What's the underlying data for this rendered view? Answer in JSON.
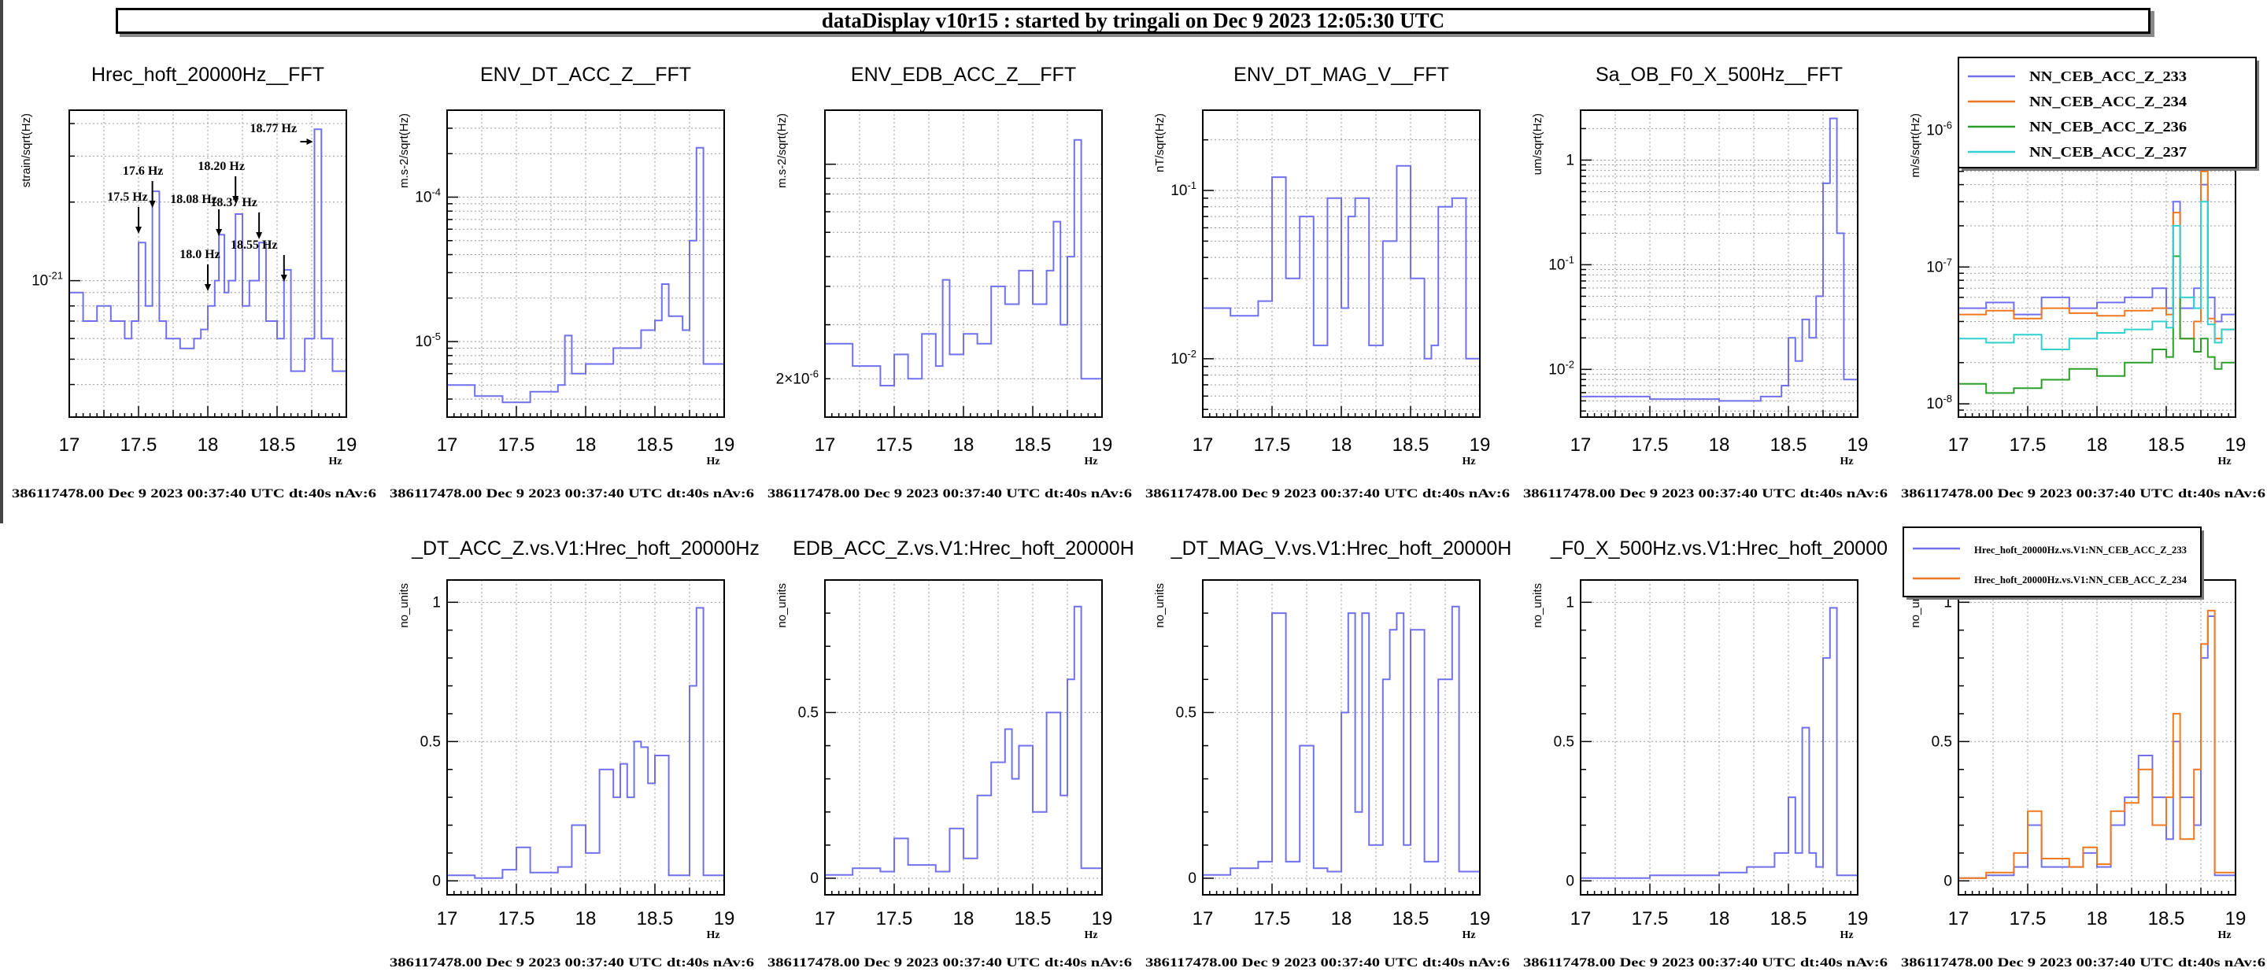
{
  "header": {
    "title": "dataDisplay v10r15 : started by tringali on Dec  9 2023 12:05:30 UTC"
  },
  "colors": {
    "blue": "#7070ee",
    "orange": "#f07820",
    "green": "#2aa02a",
    "cyan": "#30d0d0"
  },
  "chart_data": [
    {
      "type": "line",
      "title": "Hrec_hoft_20000Hz__FFT",
      "ylabel": "strain/sqrt(Hz)",
      "xlabel": "Hz",
      "xlim": [
        17,
        19
      ],
      "ylog": true,
      "ylim": [
        3e-22,
        4.5e-21
      ],
      "ytick_labels": [
        {
          "v": 1e-21,
          "label": "10-21"
        }
      ],
      "xtick_labels": [
        "17",
        "17.5",
        "18",
        "18.5",
        "19"
      ],
      "footer": "386117478.00 Dec 9 2023 00:37:40 UTC dt:40s nAv:6",
      "annotations": [
        {
          "label": "17.5 Hz",
          "x": 17.5
        },
        {
          "label": "17.6 Hz",
          "x": 17.6
        },
        {
          "label": "18.08 Hz",
          "x": 18.08
        },
        {
          "label": "18.0 Hz",
          "x": 18.0
        },
        {
          "label": "18.20 Hz",
          "x": 18.2
        },
        {
          "label": "18.37 Hz",
          "x": 18.37
        },
        {
          "label": "18.55 Hz",
          "x": 18.55
        },
        {
          "label": "18.77 Hz",
          "x": 18.77
        }
      ],
      "x": [
        17,
        17.1,
        17.2,
        17.3,
        17.4,
        17.45,
        17.5,
        17.55,
        17.6,
        17.65,
        17.7,
        17.8,
        17.9,
        17.95,
        18,
        18.05,
        18.08,
        18.12,
        18.15,
        18.2,
        18.25,
        18.3,
        18.37,
        18.42,
        18.5,
        18.55,
        18.6,
        18.7,
        18.77,
        18.82,
        18.9,
        19
      ],
      "series": [
        {
          "values": [
            9e-22,
            7e-22,
            8e-22,
            7e-22,
            6e-22,
            7e-22,
            1.4e-21,
            8e-22,
            2.2e-21,
            7e-22,
            6e-22,
            5.5e-22,
            6e-22,
            6.5e-22,
            8e-22,
            1e-21,
            1.5e-21,
            9e-22,
            1e-21,
            1.8e-21,
            8e-22,
            1e-21,
            1.4e-21,
            7e-22,
            6e-22,
            1.1e-21,
            4.5e-22,
            6e-22,
            3.8e-21,
            6e-22,
            4.5e-22,
            4.8e-22
          ],
          "color": "#7070ee"
        }
      ]
    },
    {
      "type": "line",
      "title": "ENV_DT_ACC_Z__FFT",
      "ylabel": "m.s-2/sqrt(Hz)",
      "xlabel": "Hz",
      "xlim": [
        17,
        19
      ],
      "ylog": true,
      "ylim": [
        3e-06,
        0.0004
      ],
      "ytick_labels": [
        {
          "v": 0.0001,
          "label": "10-4"
        },
        {
          "v": 1e-05,
          "label": "10-5"
        }
      ],
      "xtick_labels": [
        "17",
        "17.5",
        "18",
        "18.5",
        "19"
      ],
      "footer": "386117478.00 Dec 9 2023 00:37:40 UTC dt:40s nAv:6",
      "x": [
        17,
        17.2,
        17.4,
        17.6,
        17.8,
        17.85,
        17.9,
        18,
        18.2,
        18.4,
        18.5,
        18.55,
        18.6,
        18.7,
        18.75,
        18.8,
        18.85,
        19
      ],
      "series": [
        {
          "values": [
            5e-06,
            4.2e-06,
            3.8e-06,
            4.5e-06,
            5e-06,
            1.1e-05,
            6e-06,
            7e-06,
            9e-06,
            1.2e-05,
            1.4e-05,
            2.5e-05,
            1.5e-05,
            1.2e-05,
            5e-05,
            0.00022,
            7e-06,
            6e-06
          ],
          "color": "#7070ee"
        }
      ]
    },
    {
      "type": "line",
      "title": "ENV_EDB_ACC_Z__FFT",
      "ylabel": "m.s-2/sqrt(Hz)",
      "xlabel": "Hz",
      "xlim": [
        17,
        19
      ],
      "ylog": true,
      "ylim": [
        1.5e-06,
        1.5e-05
      ],
      "ytick_labels": [
        {
          "v": 2e-06,
          "label": "2×10-6"
        }
      ],
      "xtick_labels": [
        "17",
        "17.5",
        "18",
        "18.5",
        "19"
      ],
      "footer": "386117478.00 Dec 9 2023 00:37:40 UTC dt:40s nAv:6",
      "x": [
        17,
        17.2,
        17.4,
        17.5,
        17.6,
        17.7,
        17.8,
        17.85,
        17.9,
        18,
        18.1,
        18.2,
        18.3,
        18.4,
        18.5,
        18.6,
        18.65,
        18.7,
        18.75,
        18.8,
        18.85,
        19
      ],
      "series": [
        {
          "values": [
            2.6e-06,
            2.2e-06,
            1.9e-06,
            2.4e-06,
            2e-06,
            2.8e-06,
            2.2e-06,
            4.2e-06,
            2.4e-06,
            2.8e-06,
            2.6e-06,
            4e-06,
            3.5e-06,
            4.5e-06,
            3.5e-06,
            4.5e-06,
            6.5e-06,
            3e-06,
            5e-06,
            1.2e-05,
            2e-06,
            2.4e-06
          ],
          "color": "#7070ee"
        }
      ]
    },
    {
      "type": "line",
      "title": "ENV_DT_MAG_V__FFT",
      "ylabel": "nT/sqrt(Hz)",
      "xlabel": "Hz",
      "xlim": [
        17,
        19
      ],
      "ylog": true,
      "ylim": [
        0.0045,
        0.3
      ],
      "ytick_labels": [
        {
          "v": 0.1,
          "label": "10-1"
        },
        {
          "v": 0.01,
          "label": "10-2"
        }
      ],
      "xtick_labels": [
        "17",
        "17.5",
        "18",
        "18.5",
        "19"
      ],
      "footer": "386117478.00 Dec 9 2023 00:37:40 UTC dt:40s nAv:6",
      "x": [
        17,
        17.2,
        17.4,
        17.5,
        17.6,
        17.7,
        17.8,
        17.9,
        18,
        18.05,
        18.1,
        18.2,
        18.3,
        18.4,
        18.5,
        18.6,
        18.65,
        18.7,
        18.8,
        18.9,
        19
      ],
      "series": [
        {
          "values": [
            0.02,
            0.018,
            0.022,
            0.12,
            0.03,
            0.07,
            0.012,
            0.09,
            0.02,
            0.07,
            0.09,
            0.012,
            0.05,
            0.14,
            0.03,
            0.01,
            0.012,
            0.08,
            0.09,
            0.01,
            0.012
          ],
          "color": "#7070ee"
        }
      ]
    },
    {
      "type": "line",
      "title": "Sa_OB_F0_X_500Hz__FFT",
      "ylabel": "um/sqrt(Hz)",
      "xlabel": "Hz",
      "xlim": [
        17,
        19
      ],
      "ylog": true,
      "ylim": [
        0.0035,
        3.0
      ],
      "ytick_labels": [
        {
          "v": 1,
          "label": "1"
        },
        {
          "v": 0.1,
          "label": "10-1"
        },
        {
          "v": 0.01,
          "label": "10-2"
        }
      ],
      "xtick_labels": [
        "17",
        "17.5",
        "18",
        "18.5",
        "19"
      ],
      "footer": "386117478.00 Dec 9 2023 00:37:40 UTC dt:40s nAv:6",
      "x": [
        17,
        17.5,
        18,
        18.3,
        18.45,
        18.5,
        18.55,
        18.6,
        18.65,
        18.7,
        18.75,
        18.8,
        18.85,
        18.9,
        19
      ],
      "series": [
        {
          "values": [
            0.0055,
            0.0052,
            0.005,
            0.0055,
            0.007,
            0.02,
            0.012,
            0.03,
            0.02,
            0.05,
            0.6,
            2.5,
            0.2,
            0.008,
            0.01
          ],
          "color": "#7070ee"
        }
      ]
    },
    {
      "type": "line",
      "title": "",
      "ylabel": "m/s/sqrt(Hz)",
      "xlabel": "Hz",
      "xlim": [
        17,
        19
      ],
      "ylog": true,
      "ylim": [
        8e-09,
        1.4e-06
      ],
      "ytick_labels": [
        {
          "v": 1e-06,
          "label": "10-6"
        },
        {
          "v": 1e-07,
          "label": "10-7"
        },
        {
          "v": 1e-08,
          "label": "10-8"
        }
      ],
      "xtick_labels": [
        "17",
        "17.5",
        "18",
        "18.5",
        "19"
      ],
      "footer": "386117478.00 Dec 9 2023 00:37:40 UTC dt:40s nAv:6",
      "legend": "top-right",
      "x": [
        17,
        17.2,
        17.4,
        17.6,
        17.8,
        18,
        18.2,
        18.4,
        18.5,
        18.55,
        18.6,
        18.7,
        18.75,
        18.8,
        18.85,
        18.9,
        19
      ],
      "series": [
        {
          "name": "NN_CEB_ACC_Z_233",
          "values": [
            5e-08,
            5.5e-08,
            4.5e-08,
            6e-08,
            5e-08,
            5.5e-08,
            6e-08,
            7e-08,
            5e-08,
            3e-07,
            5e-08,
            7e-08,
            4e-07,
            6e-08,
            4e-08,
            4.5e-08,
            4.2e-08
          ],
          "color": "#7070ee"
        },
        {
          "name": "NN_CEB_ACC_Z_234",
          "values": [
            4.5e-08,
            4.8e-08,
            4.2e-08,
            5e-08,
            4.6e-08,
            4.4e-08,
            4.8e-08,
            5e-08,
            4.5e-08,
            2.5e-07,
            3e-08,
            4e-08,
            5e-07,
            4.2e-08,
            3e-08,
            3.5e-08,
            3.2e-08
          ],
          "color": "#f07820"
        },
        {
          "name": "NN_CEB_ACC_Z_236",
          "values": [
            1.4e-08,
            1.2e-08,
            1.3e-08,
            1.5e-08,
            1.8e-08,
            1.6e-08,
            2e-08,
            2.5e-08,
            2.2e-08,
            1.2e-07,
            3e-08,
            2.4e-08,
            3e-08,
            2.2e-08,
            1.8e-08,
            2e-08,
            1.9e-08
          ],
          "color": "#2aa02a"
        },
        {
          "name": "NN_CEB_ACC_Z_237",
          "values": [
            3e-08,
            2.8e-08,
            3.2e-08,
            2.5e-08,
            3e-08,
            3.3e-08,
            3.5e-08,
            4e-08,
            3.6e-08,
            2e-07,
            6e-08,
            5e-08,
            3e-07,
            3.8e-08,
            2.8e-08,
            3.5e-08,
            3.3e-08
          ],
          "color": "#30d0d0"
        }
      ]
    },
    {
      "type": "line",
      "title": "_DT_ACC_Z.vs.V1:Hrec_hoft_20000Hz",
      "ylabel": "no_units",
      "xlabel": "Hz",
      "xlim": [
        17,
        19
      ],
      "ylim": [
        -0.05,
        1.08
      ],
      "ytick_labels": [
        {
          "v": 1,
          "label": "1"
        },
        {
          "v": 0.5,
          "label": "0.5"
        },
        {
          "v": 0,
          "label": "0"
        }
      ],
      "xtick_labels": [
        "17",
        "17.5",
        "18",
        "18.5",
        "19"
      ],
      "footer": "386117478.00 Dec 9 2023 00:37:40 UTC dt:40s nAv:6",
      "x": [
        17,
        17.2,
        17.4,
        17.5,
        17.6,
        17.8,
        17.9,
        18,
        18.1,
        18.2,
        18.25,
        18.3,
        18.35,
        18.4,
        18.45,
        18.5,
        18.6,
        18.7,
        18.75,
        18.8,
        18.85,
        19
      ],
      "series": [
        {
          "values": [
            0.02,
            0.01,
            0.04,
            0.12,
            0.03,
            0.05,
            0.2,
            0.1,
            0.4,
            0.3,
            0.42,
            0.3,
            0.5,
            0.48,
            0.35,
            0.45,
            0.02,
            0.02,
            0.7,
            0.98,
            0.02,
            0.02
          ],
          "color": "#7070ee"
        }
      ]
    },
    {
      "type": "line",
      "title": "EDB_ACC_Z.vs.V1:Hrec_hoft_20000H",
      "ylabel": "no_units",
      "xlabel": "Hz",
      "xlim": [
        17,
        19
      ],
      "ylim": [
        -0.05,
        0.9
      ],
      "ytick_labels": [
        {
          "v": 0.5,
          "label": "0.5"
        },
        {
          "v": 0,
          "label": "0"
        }
      ],
      "xtick_labels": [
        "17",
        "17.5",
        "18",
        "18.5",
        "19"
      ],
      "footer": "386117478.00 Dec 9 2023 00:37:40 UTC dt:40s nAv:6",
      "x": [
        17,
        17.2,
        17.4,
        17.5,
        17.6,
        17.8,
        17.9,
        18,
        18.1,
        18.2,
        18.3,
        18.35,
        18.4,
        18.5,
        18.6,
        18.7,
        18.75,
        18.8,
        18.85,
        19
      ],
      "series": [
        {
          "values": [
            0.01,
            0.03,
            0.02,
            0.12,
            0.04,
            0.02,
            0.15,
            0.06,
            0.25,
            0.35,
            0.45,
            0.3,
            0.4,
            0.2,
            0.5,
            0.25,
            0.6,
            0.82,
            0.03,
            0.02
          ],
          "color": "#7070ee"
        }
      ]
    },
    {
      "type": "line",
      "title": "_DT_MAG_V.vs.V1:Hrec_hoft_20000H",
      "ylabel": "no_units",
      "xlabel": "Hz",
      "xlim": [
        17,
        19
      ],
      "ylim": [
        -0.05,
        0.9
      ],
      "ytick_labels": [
        {
          "v": 0.5,
          "label": "0.5"
        },
        {
          "v": 0,
          "label": "0"
        }
      ],
      "xtick_labels": [
        "17",
        "17.5",
        "18",
        "18.5",
        "19"
      ],
      "footer": "386117478.00 Dec 9 2023 00:37:40 UTC dt:40s nAv:6",
      "x": [
        17,
        17.2,
        17.4,
        17.5,
        17.6,
        17.7,
        17.8,
        17.9,
        18,
        18.05,
        18.1,
        18.15,
        18.2,
        18.3,
        18.35,
        18.4,
        18.45,
        18.5,
        18.6,
        18.7,
        18.8,
        18.85,
        19
      ],
      "series": [
        {
          "values": [
            0.01,
            0.03,
            0.05,
            0.8,
            0.05,
            0.4,
            0.03,
            0.02,
            0.5,
            0.8,
            0.2,
            0.8,
            0.1,
            0.6,
            0.75,
            0.8,
            0.1,
            0.75,
            0.05,
            0.6,
            0.82,
            0.02,
            0.02
          ],
          "color": "#7070ee"
        }
      ]
    },
    {
      "type": "line",
      "title": "_F0_X_500Hz.vs.V1:Hrec_hoft_20000",
      "ylabel": "no_units",
      "xlabel": "Hz",
      "xlim": [
        17,
        19
      ],
      "ylim": [
        -0.05,
        1.08
      ],
      "ytick_labels": [
        {
          "v": 1,
          "label": "1"
        },
        {
          "v": 0.5,
          "label": "0.5"
        },
        {
          "v": 0,
          "label": "0"
        }
      ],
      "xtick_labels": [
        "17",
        "17.5",
        "18",
        "18.5",
        "19"
      ],
      "footer": "386117478.00 Dec 9 2023 00:37:40 UTC dt:40s nAv:6",
      "x": [
        17,
        17.5,
        18,
        18.2,
        18.4,
        18.5,
        18.55,
        18.6,
        18.65,
        18.7,
        18.75,
        18.8,
        18.85,
        19
      ],
      "series": [
        {
          "values": [
            0.01,
            0.02,
            0.03,
            0.05,
            0.1,
            0.3,
            0.1,
            0.55,
            0.1,
            0.05,
            0.8,
            0.98,
            0.02,
            0.02
          ],
          "color": "#7070ee"
        }
      ]
    },
    {
      "type": "line",
      "title": "",
      "ylabel": "no_units",
      "xlabel": "Hz",
      "xlim": [
        17,
        19
      ],
      "ylim": [
        -0.05,
        1.08
      ],
      "ytick_labels": [
        {
          "v": 1,
          "label": "1"
        },
        {
          "v": 0.5,
          "label": "0.5"
        },
        {
          "v": 0,
          "label": "0"
        }
      ],
      "xtick_labels": [
        "17",
        "17.5",
        "18",
        "18.5",
        "19"
      ],
      "footer": "386117478.00 Dec 9 2023 00:37:40 UTC dt:40s nAv:6",
      "legend": "top-right",
      "x": [
        17,
        17.2,
        17.4,
        17.5,
        17.6,
        17.8,
        17.9,
        18,
        18.1,
        18.2,
        18.3,
        18.4,
        18.5,
        18.55,
        18.6,
        18.7,
        18.75,
        18.8,
        18.85,
        19
      ],
      "series": [
        {
          "name": "Hrec_hoft_20000Hz.vs.V1:NN_CEB_ACC_Z_233",
          "values": [
            0.01,
            0.02,
            0.05,
            0.2,
            0.05,
            0.05,
            0.1,
            0.05,
            0.2,
            0.3,
            0.45,
            0.3,
            0.15,
            0.5,
            0.3,
            0.2,
            0.8,
            0.95,
            0.02,
            0.02
          ],
          "color": "#7070ee"
        },
        {
          "name": "Hrec_hoft_20000Hz.vs.V1:NN_CEB_ACC_Z_234",
          "values": [
            0.01,
            0.03,
            0.1,
            0.25,
            0.08,
            0.05,
            0.12,
            0.06,
            0.25,
            0.28,
            0.4,
            0.2,
            0.3,
            0.6,
            0.15,
            0.4,
            0.85,
            0.97,
            0.03,
            0.02
          ],
          "color": "#f07820"
        }
      ]
    }
  ]
}
